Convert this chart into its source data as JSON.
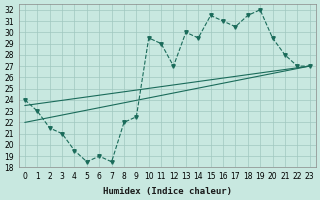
{
  "xlabel": "Humidex (Indice chaleur)",
  "ylabel": "",
  "bg_color": "#c8e8e0",
  "line_color": "#1a6b5a",
  "xlim": [
    -0.5,
    23.5
  ],
  "ylim": [
    18,
    32.5
  ],
  "yticks": [
    18,
    19,
    20,
    21,
    22,
    23,
    24,
    25,
    26,
    27,
    28,
    29,
    30,
    31,
    32
  ],
  "xticks": [
    0,
    1,
    2,
    3,
    4,
    5,
    6,
    7,
    8,
    9,
    10,
    11,
    12,
    13,
    14,
    15,
    16,
    17,
    18,
    19,
    20,
    21,
    22,
    23
  ],
  "main_x": [
    0,
    1,
    2,
    3,
    4,
    5,
    6,
    7,
    8,
    9,
    10,
    11,
    12,
    13,
    14,
    15,
    16,
    17,
    18,
    19,
    20,
    21,
    22,
    23
  ],
  "main_y": [
    24,
    23,
    21.5,
    21,
    19.5,
    18.5,
    19,
    18.5,
    22,
    22.5,
    29.5,
    29,
    27,
    30,
    29.5,
    31.5,
    31,
    30.5,
    31.5,
    32,
    29.5,
    28,
    27,
    27
  ],
  "line1_x": [
    0,
    23
  ],
  "line1_y": [
    22.0,
    27.0
  ],
  "line2_x": [
    0,
    23
  ],
  "line2_y": [
    23.5,
    27.0
  ],
  "grid_color": "#a0c8c0"
}
